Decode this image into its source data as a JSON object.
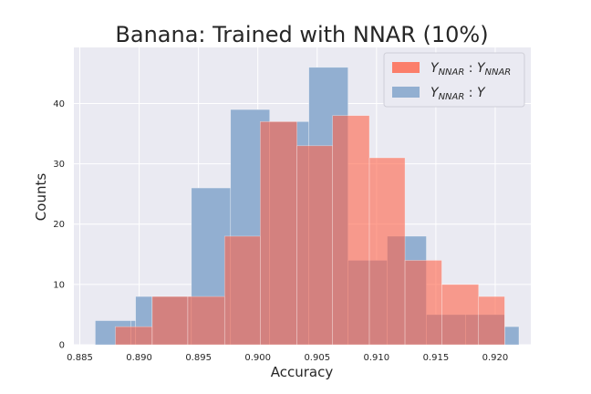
{
  "chart_data": {
    "type": "histogram",
    "title": "Banana: Trained with NNAR (10%)",
    "xlabel": "Accuracy",
    "ylabel": "Counts",
    "xlim": [
      0.8845,
      0.923
    ],
    "ylim": [
      0,
      49.3
    ],
    "x_ticks": [
      "0.885",
      "0.890",
      "0.895",
      "0.900",
      "0.905",
      "0.910",
      "0.915",
      "0.920"
    ],
    "x_tick_values": [
      0.885,
      0.89,
      0.895,
      0.9,
      0.905,
      0.91,
      0.915,
      0.92
    ],
    "y_ticks": [
      "0",
      "10",
      "20",
      "30",
      "40"
    ],
    "y_tick_values": [
      0,
      10,
      20,
      30,
      40
    ],
    "grid": true,
    "legend_position": "top-right",
    "series": [
      {
        "name": "Y_NNAR : Y",
        "legend_main": "Y",
        "legend_sub": "NNAR",
        "legend_sep": " : ",
        "legend_main2": "Y",
        "legend_sub2": "",
        "color": "#92afd1",
        "bin_edges": [
          0.8863,
          0.8893,
          0.8897,
          0.8911,
          0.8944,
          0.8977,
          0.901,
          0.9043,
          0.9076,
          0.9109,
          0.9142,
          0.9175,
          0.9208,
          0.922
        ],
        "counts": [
          4,
          4,
          8,
          8,
          26,
          39,
          37,
          46,
          14,
          18,
          5,
          5,
          3
        ]
      },
      {
        "name": "Y_NNAR : Y_NNAR",
        "legend_main": "Y",
        "legend_sub": "NNAR",
        "legend_sep": " : ",
        "legend_main2": "Y",
        "legend_sub2": "NNAR",
        "color": "#ff6347",
        "bin_edges": [
          0.888,
          0.8911,
          0.8941,
          0.8972,
          0.9002,
          0.9033,
          0.9063,
          0.9094,
          0.9124,
          0.9155,
          0.9186,
          0.9208
        ],
        "counts": [
          3,
          8,
          8,
          18,
          37,
          33,
          38,
          31,
          14,
          10,
          8
        ]
      }
    ]
  }
}
